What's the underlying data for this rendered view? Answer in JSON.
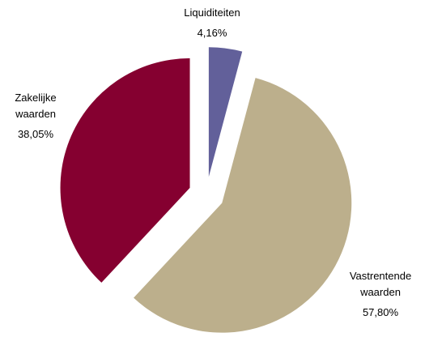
{
  "chart_data": {
    "type": "pie",
    "categories": [
      "Liquiditeiten",
      "Vastrentende waarden",
      "Zakelijke waarden"
    ],
    "values": [
      4.16,
      57.8,
      38.05
    ],
    "value_labels": [
      "4,16%",
      "57,80%",
      "38,05%"
    ],
    "colors": [
      "#62609a",
      "#bcaf8c",
      "#850030"
    ],
    "exploded": true
  }
}
